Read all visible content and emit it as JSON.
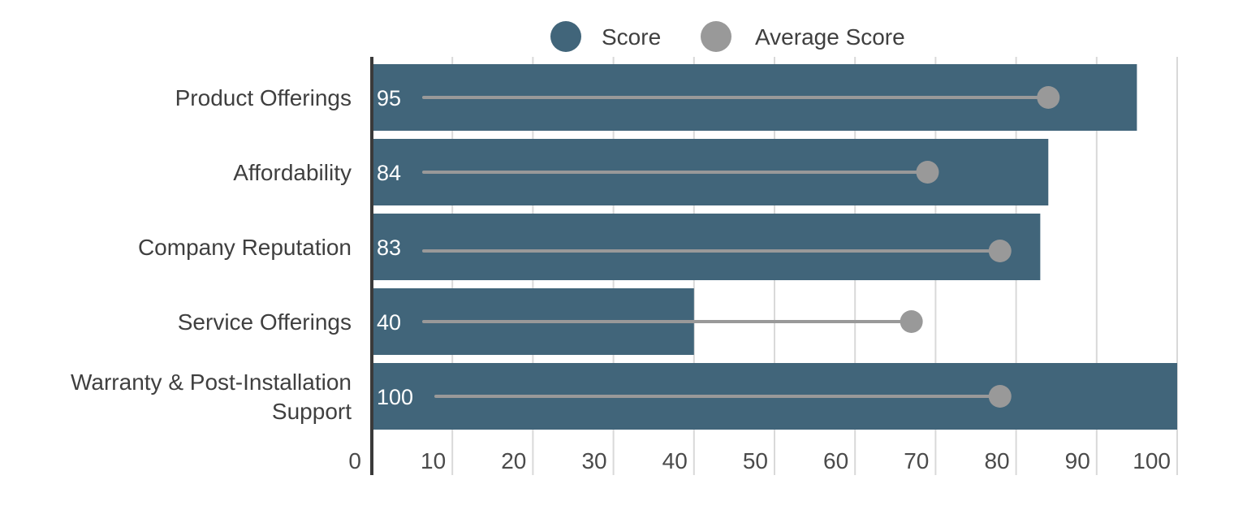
{
  "chart_data": {
    "type": "bar",
    "orientation": "horizontal",
    "categories": [
      [
        "Product Offerings"
      ],
      [
        "Affordability"
      ],
      [
        "Company Reputation"
      ],
      [
        "Service Offerings"
      ],
      [
        "Warranty & Post-Installation",
        "Support"
      ]
    ],
    "series": [
      {
        "name": "Score",
        "values": [
          95,
          84,
          83,
          40,
          100
        ],
        "color": "#41657a",
        "shows_data_labels": true
      },
      {
        "name": "Average Score",
        "values": [
          84,
          69,
          78,
          67,
          78
        ],
        "color": "#999999",
        "marker": "circle-with-line"
      }
    ],
    "xlim": [
      0,
      100
    ],
    "x_ticks": [
      0,
      10,
      20,
      30,
      40,
      50,
      60,
      70,
      80,
      90,
      100
    ],
    "grid": true,
    "legend": "top-center",
    "title": "",
    "xlabel": "",
    "ylabel": ""
  }
}
